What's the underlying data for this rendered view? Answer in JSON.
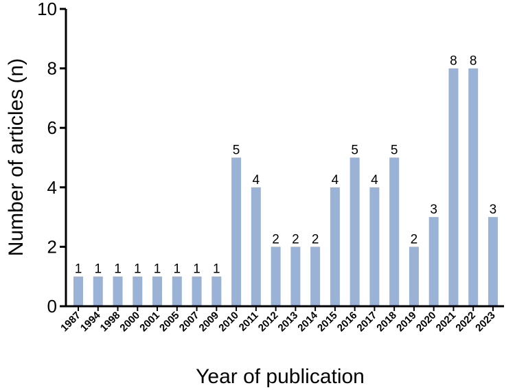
{
  "chart_data": {
    "type": "bar",
    "title": "",
    "xlabel": "Year of publication",
    "ylabel": "Number of articles (n)",
    "ylim": [
      0,
      10
    ],
    "yticks": [
      "0",
      "2",
      "4",
      "6",
      "8",
      "10"
    ],
    "categories": [
      "1987",
      "1994",
      "1998",
      "2000",
      "2001",
      "2005",
      "2007",
      "2009",
      "2010",
      "2011",
      "2012",
      "2013",
      "2014",
      "2015",
      "2016",
      "2017",
      "2018",
      "2019",
      "2020",
      "2021",
      "2022",
      "2023"
    ],
    "values": [
      1,
      1,
      1,
      1,
      1,
      1,
      1,
      1,
      5,
      4,
      2,
      2,
      2,
      4,
      5,
      4,
      5,
      2,
      3,
      8,
      8,
      3
    ],
    "data_labels": [
      "1",
      "1",
      "1",
      "1",
      "1",
      "1",
      "1",
      "1",
      "5",
      "4",
      "2",
      "2",
      "2",
      "4",
      "5",
      "4",
      "5",
      "2",
      "3",
      "8",
      "8",
      "3"
    ],
    "bar_color": "#9ab2d6",
    "grid": false,
    "legend": "none"
  }
}
